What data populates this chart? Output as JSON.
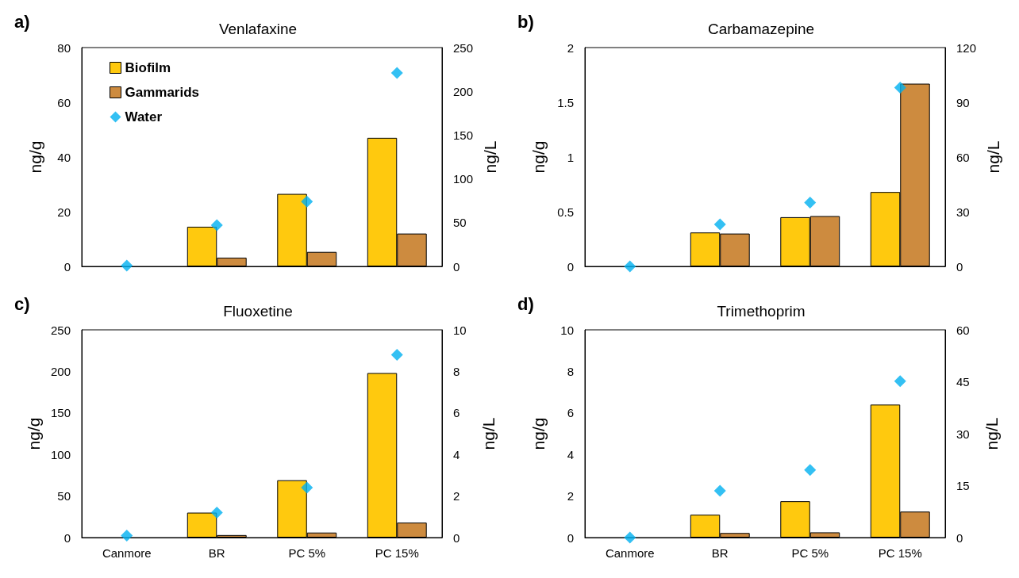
{
  "chart_data": [
    {
      "type": "bar",
      "title": "Venlafaxine",
      "annotations": [
        "a)"
      ],
      "ylabel": "ng/g",
      "y2label": "ng/L",
      "categories": [
        null,
        null,
        null,
        null
      ],
      "tick_labels": "y",
      "legend": "top left",
      "marker": "diamond",
      "ylim": [
        0,
        80
      ],
      "yticks": [
        0,
        20,
        40,
        60,
        80
      ],
      "y2lim": [
        0,
        250
      ],
      "y2ticks": [
        0,
        50,
        100,
        150,
        200,
        250
      ],
      "series": [
        {
          "name": "Biofilm",
          "color": "#ffc90e",
          "values": [
            null,
            14.5,
            26.5,
            47
          ]
        },
        {
          "name": "Gammarids",
          "color": "#cd8b3f",
          "values": [
            null,
            3.2,
            5.3,
            12
          ]
        },
        {
          "name": "Water",
          "type": "scatter",
          "axis": "y2",
          "color": "#00b0f0",
          "values": [
            1,
            47,
            74,
            221
          ]
        }
      ]
    },
    {
      "type": "bar",
      "title": "Carbamazepine",
      "annotations": [
        "b)"
      ],
      "ylabel": "ng/g",
      "y2label": "ng/L",
      "categories": [
        null,
        null,
        null,
        null
      ],
      "tick_labels": "y",
      "marker": "diamond",
      "ylim": [
        0,
        2
      ],
      "yticks": [
        0,
        0.5,
        1,
        1.5,
        2
      ],
      "y2lim": [
        0,
        120
      ],
      "y2ticks": [
        0,
        30,
        60,
        90,
        120
      ],
      "series": [
        {
          "color": "#ffc90e",
          "values": [
            null,
            0.31,
            0.45,
            0.68
          ]
        },
        {
          "color": "#cd8b3f",
          "values": [
            null,
            0.3,
            0.46,
            1.67
          ]
        },
        {
          "type": "scatter",
          "axis": "y2",
          "color": "#00b0f0",
          "values": [
            0,
            23,
            35,
            98
          ]
        }
      ]
    },
    {
      "type": "bar",
      "title": "Fluoxetine",
      "annotations": [
        "c)"
      ],
      "ylabel": "ng/g",
      "y2label": "ng/L",
      "categories": [
        "Canmore",
        "BR",
        "PC 5%",
        "PC 15%"
      ],
      "marker": "diamond",
      "ylim": [
        0,
        250
      ],
      "yticks": [
        0,
        50,
        100,
        150,
        200,
        250
      ],
      "y2lim": [
        0,
        10
      ],
      "y2ticks": [
        0,
        2,
        4,
        6,
        8,
        10
      ],
      "series": [
        {
          "color": "#ffc90e",
          "values": [
            null,
            30,
            69,
            198
          ]
        },
        {
          "color": "#cd8b3f",
          "values": [
            null,
            3,
            6,
            18
          ]
        },
        {
          "type": "scatter",
          "axis": "y2",
          "color": "#00b0f0",
          "values": [
            0.1,
            1.2,
            2.4,
            8.8
          ]
        }
      ]
    },
    {
      "type": "bar",
      "title": "Trimethoprim",
      "annotations": [
        "d)"
      ],
      "ylabel": "ng/g",
      "y2label": "ng/L",
      "categories": [
        "Canmore",
        "BR",
        "PC 5%",
        "PC 15%"
      ],
      "marker": "diamond",
      "ylim": [
        0,
        10
      ],
      "yticks": [
        0,
        2,
        4,
        6,
        8,
        10
      ],
      "y2lim": [
        0,
        60
      ],
      "y2ticks": [
        0,
        15,
        30,
        45,
        60
      ],
      "series": [
        {
          "color": "#ffc90e",
          "values": [
            null,
            1.1,
            1.75,
            6.4
          ]
        },
        {
          "color": "#cd8b3f",
          "values": [
            null,
            0.22,
            0.25,
            1.25
          ]
        },
        {
          "type": "scatter",
          "axis": "y2",
          "color": "#00b0f0",
          "values": [
            0,
            13.5,
            19.5,
            45.2
          ]
        }
      ]
    }
  ]
}
